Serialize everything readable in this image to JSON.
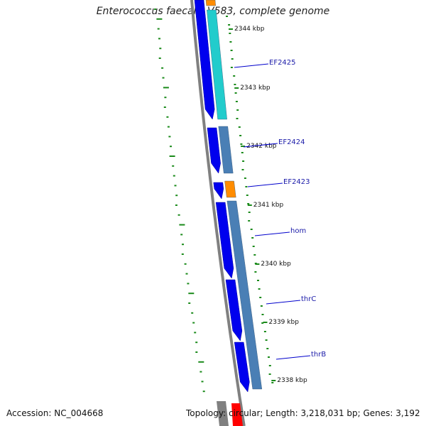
{
  "map": {
    "title": "Enterococcus faecalis V583, complete genome",
    "accession": "Accession: NC_004668",
    "stats": "Topology: circular; Length: 3,218,031 bp; Genes: 3,192",
    "colors": {
      "backbone": "#808080",
      "cds_dark": "#0000ee",
      "cyan": "#22cccc",
      "steel": "#4a7fb5",
      "orange": "#ff8c00",
      "red": "#ff0000",
      "gc_dots": "#1a8a1a",
      "leader": "#0000cc"
    },
    "kbp_ticks": [
      {
        "label": "2344 kbp"
      },
      {
        "label": "2343 kbp"
      },
      {
        "label": "2342 kbp"
      },
      {
        "label": "2341 kbp"
      },
      {
        "label": "2340 kbp"
      },
      {
        "label": "2339 kbp"
      },
      {
        "label": "2338 kbp"
      }
    ],
    "genes": [
      {
        "label": "EF2425"
      },
      {
        "label": "EF2424"
      },
      {
        "label": "EF2423"
      },
      {
        "label": "hom"
      },
      {
        "label": "thrC"
      },
      {
        "label": "thrB"
      }
    ]
  }
}
